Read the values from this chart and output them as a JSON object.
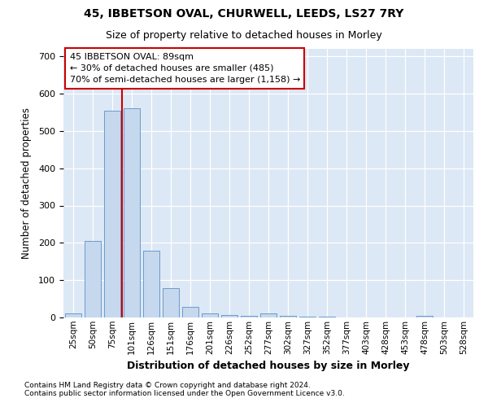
{
  "title1": "45, IBBETSON OVAL, CHURWELL, LEEDS, LS27 7RY",
  "title2": "Size of property relative to detached houses in Morley",
  "xlabel": "Distribution of detached houses by size in Morley",
  "ylabel": "Number of detached properties",
  "categories": [
    "25sqm",
    "50sqm",
    "75sqm",
    "101sqm",
    "126sqm",
    "151sqm",
    "176sqm",
    "201sqm",
    "226sqm",
    "252sqm",
    "277sqm",
    "302sqm",
    "327sqm",
    "352sqm",
    "377sqm",
    "403sqm",
    "428sqm",
    "453sqm",
    "478sqm",
    "503sqm",
    "528sqm"
  ],
  "values": [
    10,
    205,
    555,
    560,
    178,
    78,
    28,
    10,
    7,
    5,
    10,
    5,
    3,
    2,
    1,
    1,
    0,
    0,
    5,
    1,
    0
  ],
  "bar_color": "#c5d8ed",
  "bar_edge_color": "#5b8fc8",
  "vline_index": 2.5,
  "vline_color": "#cc0000",
  "annotation_text": "45 IBBETSON OVAL: 89sqm\n← 30% of detached houses are smaller (485)\n70% of semi-detached houses are larger (1,158) →",
  "annotation_box_facecolor": "#ffffff",
  "annotation_box_edgecolor": "#cc0000",
  "ylim": [
    0,
    720
  ],
  "yticks": [
    0,
    100,
    200,
    300,
    400,
    500,
    600,
    700
  ],
  "footer1": "Contains HM Land Registry data © Crown copyright and database right 2024.",
  "footer2": "Contains public sector information licensed under the Open Government Licence v3.0.",
  "plot_bg_color": "#dce8f5"
}
